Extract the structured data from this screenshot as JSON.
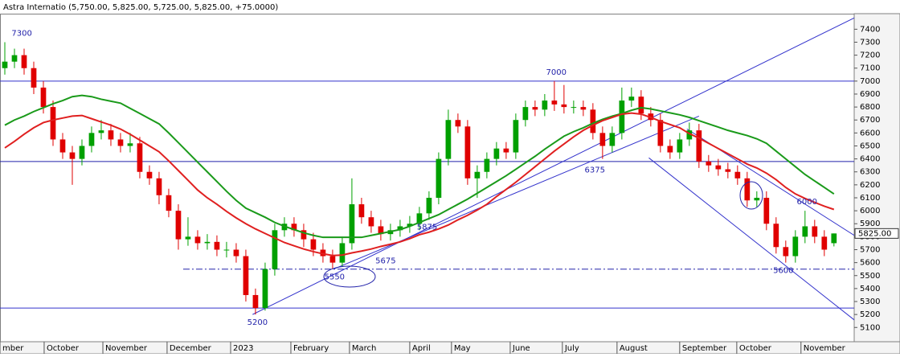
{
  "chart_data": {
    "type": "candlestick",
    "title": "Astra Internatio (5,750.00, 5,825.00, 5,725.00, 5,825.00, +75.0000)",
    "up_color": "#00a000",
    "down_color": "#e00000",
    "open": [
      7100,
      7150,
      7200,
      7100,
      6950,
      6800,
      6550,
      6450,
      6400,
      6500,
      6600,
      6620,
      6550,
      6500,
      6520,
      6300,
      6250,
      6120,
      6000,
      5780,
      5800,
      5750,
      5760,
      5700,
      5700,
      5650,
      5350,
      5250,
      5550,
      5850,
      5900,
      5850,
      5780,
      5700,
      5650,
      5600,
      5750,
      6050,
      5950,
      5880,
      5820,
      5850,
      5880,
      5900,
      5980,
      6100,
      6400,
      6700,
      6650,
      6250,
      6300,
      6400,
      6480,
      6450,
      6700,
      6800,
      6780,
      6850,
      6820,
      6800,
      6800,
      6780,
      6600,
      6500,
      6600,
      6850,
      6880,
      6750,
      6700,
      6500,
      6450,
      6550,
      6620,
      6380,
      6350,
      6320,
      6300,
      6250,
      6080,
      6100,
      5900,
      5720,
      5650,
      5800,
      5880,
      5800,
      5750
    ],
    "high": [
      7300,
      7250,
      7250,
      7150,
      7000,
      6850,
      6600,
      6500,
      6550,
      6650,
      6700,
      6670,
      6600,
      6600,
      6570,
      6350,
      6300,
      6170,
      6050,
      5950,
      5850,
      5820,
      5810,
      5760,
      5750,
      5700,
      5400,
      5600,
      5900,
      5950,
      5950,
      5900,
      5830,
      5750,
      5700,
      5800,
      6250,
      6100,
      6000,
      5930,
      5900,
      5930,
      5960,
      6030,
      6150,
      6450,
      6780,
      6750,
      6700,
      6350,
      6450,
      6530,
      6530,
      6750,
      6850,
      6850,
      6900,
      7000,
      6970,
      6850,
      6850,
      6830,
      6650,
      6650,
      6950,
      6950,
      6930,
      6800,
      6750,
      6550,
      6600,
      6680,
      6670,
      6430,
      6400,
      6370,
      6350,
      6300,
      6150,
      6150,
      5950,
      5770,
      5850,
      6000,
      5930,
      5850,
      5825
    ],
    "low": [
      7050,
      7100,
      7050,
      6900,
      6750,
      6500,
      6400,
      6200,
      6350,
      6450,
      6550,
      6500,
      6450,
      6450,
      6250,
      6200,
      6050,
      5950,
      5700,
      5730,
      5700,
      5700,
      5650,
      5640,
      5600,
      5300,
      5200,
      5230,
      5500,
      5800,
      5800,
      5720,
      5650,
      5600,
      5550,
      5570,
      5700,
      5900,
      5830,
      5770,
      5770,
      5800,
      5830,
      5850,
      5930,
      6050,
      6350,
      6600,
      6200,
      6100,
      6250,
      6350,
      6400,
      6400,
      6650,
      6730,
      6730,
      6770,
      6750,
      6750,
      6730,
      6550,
      6400,
      6450,
      6550,
      6800,
      6700,
      6650,
      6450,
      6400,
      6400,
      6500,
      6330,
      6300,
      6270,
      6250,
      6200,
      6030,
      6030,
      5850,
      5670,
      5600,
      5600,
      5750,
      5750,
      5650,
      5725
    ],
    "close": [
      7150,
      7200,
      7100,
      6950,
      6800,
      6550,
      6450,
      6400,
      6500,
      6600,
      6620,
      6550,
      6500,
      6520,
      6300,
      6250,
      6120,
      6000,
      5780,
      5800,
      5750,
      5760,
      5700,
      5700,
      5650,
      5350,
      5250,
      5550,
      5850,
      5900,
      5850,
      5780,
      5700,
      5650,
      5600,
      5750,
      6050,
      5950,
      5880,
      5820,
      5850,
      5880,
      5900,
      5980,
      6100,
      6400,
      6700,
      6650,
      6250,
      6300,
      6400,
      6480,
      6450,
      6700,
      6800,
      6780,
      6850,
      6820,
      6800,
      6800,
      6780,
      6600,
      6500,
      6600,
      6850,
      6880,
      6750,
      6700,
      6500,
      6450,
      6550,
      6620,
      6380,
      6350,
      6320,
      6300,
      6250,
      6080,
      6100,
      5900,
      5720,
      5650,
      5800,
      5880,
      5800,
      5700,
      5825
    ],
    "series": [
      {
        "color": "#1a9a1a",
        "values": [
          6660,
          6700,
          6730,
          6765,
          6795,
          6825,
          6850,
          6880,
          6890,
          6880,
          6860,
          6845,
          6830,
          6790,
          6750,
          6710,
          6670,
          6600,
          6525,
          6450,
          6375,
          6300,
          6225,
          6150,
          6080,
          6020,
          5985,
          5950,
          5910,
          5880,
          5855,
          5830,
          5810,
          5795,
          5795,
          5795,
          5795,
          5795,
          5810,
          5825,
          5840,
          5855,
          5880,
          5910,
          5940,
          5970,
          6010,
          6050,
          6090,
          6135,
          6180,
          6225,
          6270,
          6320,
          6370,
          6420,
          6475,
          6525,
          6575,
          6610,
          6640,
          6675,
          6705,
          6730,
          6750,
          6775,
          6795,
          6785,
          6770,
          6755,
          6740,
          6720,
          6695,
          6670,
          6645,
          6620,
          6600,
          6580,
          6555,
          6520,
          6460,
          6400,
          6340,
          6280,
          6230,
          6180,
          6130
        ]
      },
      {
        "color": "#e02020",
        "values": [
          6485,
          6535,
          6590,
          6640,
          6680,
          6700,
          6715,
          6730,
          6735,
          6710,
          6685,
          6660,
          6630,
          6590,
          6545,
          6500,
          6455,
          6385,
          6310,
          6235,
          6160,
          6100,
          6050,
          5995,
          5945,
          5900,
          5860,
          5825,
          5790,
          5755,
          5730,
          5705,
          5685,
          5668,
          5655,
          5658,
          5675,
          5689,
          5705,
          5725,
          5742,
          5760,
          5785,
          5815,
          5835,
          5860,
          5890,
          5930,
          5965,
          6005,
          6050,
          6110,
          6165,
          6220,
          6280,
          6340,
          6400,
          6460,
          6515,
          6570,
          6620,
          6660,
          6695,
          6720,
          6745,
          6753,
          6745,
          6720,
          6690,
          6665,
          6640,
          6595,
          6560,
          6520,
          6480,
          6440,
          6400,
          6360,
          6330,
          6290,
          6240,
          6180,
          6130,
          6095,
          6065,
          6035,
          6010
        ]
      }
    ],
    "hlines": [
      {
        "value": 7000,
        "color": "#3333cc",
        "style": "solid"
      },
      {
        "value": 6380,
        "color": "#2222aa",
        "style": "solid"
      },
      {
        "value": 5250,
        "color": "#3333cc",
        "style": "solid"
      },
      {
        "value": 5550,
        "color": "#2222aa",
        "style": "dashdot",
        "from": 18.5
      }
    ],
    "trendlines": [
      {
        "x": [
          25.7,
          89
        ],
        "y": [
          5200,
          7520
        ],
        "color": "#3333cc"
      },
      {
        "x": [
          34.1,
          72
        ],
        "y": [
          5550,
          6730
        ],
        "color": "#3333cc"
      },
      {
        "x": [
          70.75,
          89.1
        ],
        "y": [
          6631,
          5763
        ],
        "color": "#3333cc"
      },
      {
        "x": [
          66.8,
          89.1
        ],
        "y": [
          6408,
          5100
        ],
        "color": "#3333cc"
      }
    ],
    "annotations": [
      {
        "x": 0.7,
        "value": 7300
      },
      {
        "x": 57.2,
        "value": 7000
      },
      {
        "x": 61.2,
        "value": 6375
      },
      {
        "x": 26.2,
        "value": 5200
      },
      {
        "x": 34.2,
        "value": 5550
      },
      {
        "x": 39.5,
        "value": 5675
      },
      {
        "x": 43.8,
        "value": 5875
      },
      {
        "x": 83.2,
        "value": 6000
      },
      {
        "x": 80.75,
        "value": 5600
      }
    ],
    "last_price": {
      "value": 5825,
      "label": "5825.00"
    },
    "xlim": [
      -0.5,
      88.1
    ],
    "ylim": [
      4990,
      7520
    ],
    "yticks": [
      5100,
      5200,
      5300,
      5400,
      5500,
      5600,
      5700,
      5800,
      5900,
      6000,
      6100,
      6200,
      6300,
      6400,
      6500,
      6600,
      6700,
      6800,
      6900,
      7000,
      7100,
      7200,
      7300,
      7400
    ],
    "xticks": [
      {
        "value": -0.5,
        "label": "mber"
      },
      {
        "value": 4.08,
        "label": "October"
      },
      {
        "value": 10.17,
        "label": "November"
      },
      {
        "value": 16.83,
        "label": "December"
      },
      {
        "value": 23.42,
        "label": "2023"
      },
      {
        "value": 29.67,
        "label": "February"
      },
      {
        "value": 35.75,
        "label": "March"
      },
      {
        "value": 42,
        "label": "April"
      },
      {
        "value": 46.33,
        "label": "May"
      },
      {
        "value": 52.42,
        "label": "June"
      },
      {
        "value": 57.83,
        "label": "July"
      },
      {
        "value": 63.5,
        "label": "August"
      },
      {
        "value": 70,
        "label": "September"
      },
      {
        "value": 75.92,
        "label": "October"
      },
      {
        "value": 82.58,
        "label": "November"
      }
    ],
    "grid": false
  }
}
